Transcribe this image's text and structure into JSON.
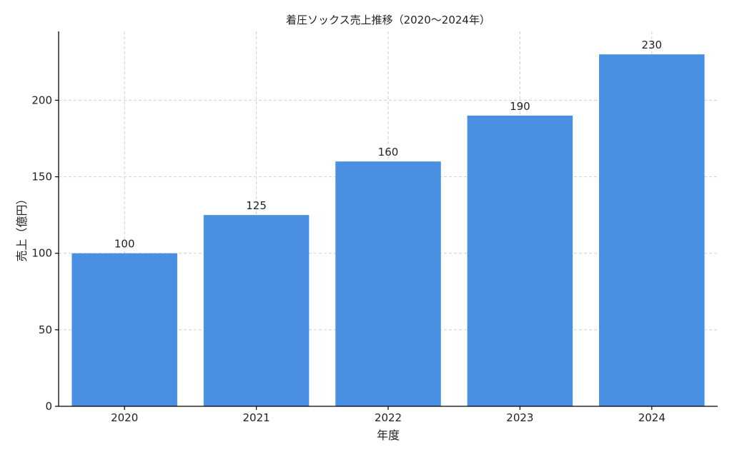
{
  "chart_data": {
    "type": "bar",
    "title": "着圧ソックス売上推移（2020〜2024年）",
    "xlabel": "年度",
    "ylabel": "売上（億円）",
    "categories": [
      "2020",
      "2021",
      "2022",
      "2023",
      "2024"
    ],
    "values": [
      100,
      125,
      160,
      190,
      230
    ],
    "data_labels": [
      "100",
      "125",
      "160",
      "190",
      "230"
    ],
    "ylim": [
      0,
      245
    ],
    "yticks": [
      0,
      50,
      100,
      150,
      200
    ],
    "ytick_labels": [
      "0",
      "50",
      "100",
      "150",
      "200"
    ],
    "grid": true,
    "bar_color": "#4a90e2"
  }
}
